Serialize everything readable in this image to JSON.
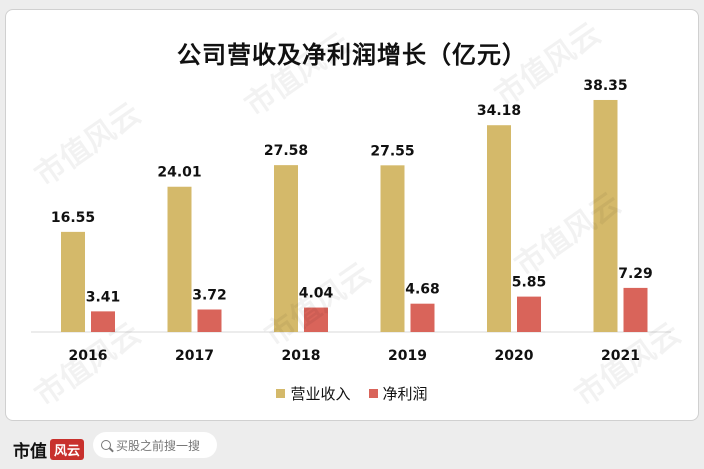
{
  "chart_data": {
    "type": "bar",
    "title": "公司营收及净利润增长（亿元）",
    "categories": [
      "2016",
      "2017",
      "2018",
      "2019",
      "2020",
      "2021"
    ],
    "series": [
      {
        "name": "营业收入",
        "color": "#d4b96a",
        "values": [
          16.55,
          24.01,
          27.58,
          27.55,
          34.18,
          38.35
        ]
      },
      {
        "name": "净利润",
        "color": "#d9645a",
        "values": [
          3.41,
          3.72,
          4.04,
          4.68,
          5.85,
          7.29
        ]
      }
    ],
    "data_labels": [
      [
        "16.55",
        "24.01",
        "27.58",
        "27.55",
        "34.18",
        "38.35"
      ],
      [
        "3.41",
        "3.72",
        "4.04",
        "4.68",
        "5.85",
        "7.29"
      ]
    ],
    "ylim": [
      0,
      40
    ],
    "grid": false,
    "legend_position": "bottom"
  },
  "watermark": "市值风云",
  "footer": {
    "brand_text": "市值",
    "brand_seal": "风云",
    "search_placeholder": "买股之前搜一搜"
  }
}
